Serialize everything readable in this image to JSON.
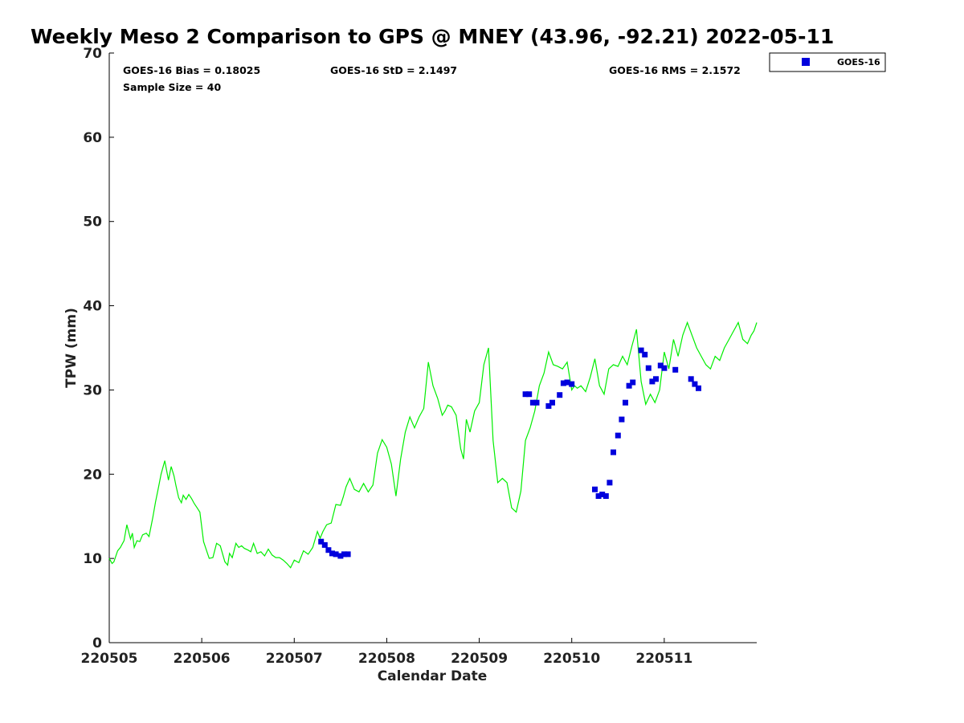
{
  "chart_data": {
    "type": "scatter",
    "title": "Weekly Meso 2 Comparison to GPS @ MNEY (43.96, -92.21) 2022-05-11",
    "xlabel": "Calendar Date",
    "ylabel": "TPW (mm)",
    "xlim": [
      0,
      7
    ],
    "ylim": [
      0,
      70
    ],
    "x_ticks": [
      {
        "value": 0,
        "label": "220505"
      },
      {
        "value": 1,
        "label": "220506"
      },
      {
        "value": 2,
        "label": "220507"
      },
      {
        "value": 3,
        "label": "220508"
      },
      {
        "value": 4,
        "label": "220509"
      },
      {
        "value": 5,
        "label": "220510"
      },
      {
        "value": 6,
        "label": "220511"
      }
    ],
    "y_ticks": [
      0,
      10,
      20,
      30,
      40,
      50,
      60,
      70
    ],
    "grid": false,
    "legend_position": "top-right",
    "stats": {
      "bias": "GOES-16 Bias = 0.18025",
      "std": "GOES-16 StD = 2.1497",
      "rms": "GOES-16 RMS = 2.1572",
      "sample": "Sample Size = 40"
    },
    "series": [
      {
        "name": "GOES-16",
        "kind": "points",
        "color": "#0000dd",
        "x": [
          2.29,
          2.33,
          2.37,
          2.41,
          2.45,
          2.5,
          2.54,
          2.58,
          4.5,
          4.54,
          4.58,
          4.62,
          4.75,
          4.79,
          4.87,
          4.91,
          4.95,
          5.0,
          5.25,
          5.29,
          5.33,
          5.37,
          5.41,
          5.45,
          5.5,
          5.54,
          5.58,
          5.62,
          5.66,
          5.75,
          5.79,
          5.83,
          5.87,
          5.91,
          5.96,
          6.0,
          6.12,
          6.29,
          6.33,
          6.37
        ],
        "y": [
          12.0,
          11.6,
          11.0,
          10.6,
          10.5,
          10.3,
          10.5,
          10.5,
          29.5,
          29.5,
          28.5,
          28.5,
          28.1,
          28.5,
          29.4,
          30.8,
          30.9,
          30.7,
          18.2,
          17.4,
          17.6,
          17.4,
          19.0,
          22.6,
          24.6,
          26.5,
          28.5,
          30.5,
          30.9,
          34.7,
          34.2,
          32.6,
          31.0,
          31.3,
          32.9,
          32.6,
          32.4,
          31.3,
          30.7,
          30.2
        ]
      },
      {
        "name": "",
        "kind": "line",
        "color": "#00ee00",
        "x": [
          0.0,
          0.03,
          0.05,
          0.09,
          0.12,
          0.16,
          0.19,
          0.23,
          0.25,
          0.27,
          0.3,
          0.33,
          0.36,
          0.4,
          0.43,
          0.47,
          0.5,
          0.53,
          0.56,
          0.6,
          0.64,
          0.67,
          0.7,
          0.72,
          0.75,
          0.78,
          0.8,
          0.83,
          0.86,
          0.89,
          0.92,
          0.95,
          0.98,
          1.02,
          1.05,
          1.08,
          1.12,
          1.16,
          1.2,
          1.25,
          1.28,
          1.3,
          1.33,
          1.37,
          1.4,
          1.43,
          1.46,
          1.5,
          1.53,
          1.56,
          1.6,
          1.64,
          1.68,
          1.72,
          1.76,
          1.8,
          1.84,
          1.88,
          1.92,
          1.96,
          2.0,
          2.05,
          2.1,
          2.15,
          2.2,
          2.25,
          2.28,
          2.31,
          2.35,
          2.4,
          2.45,
          2.5,
          2.53,
          2.56,
          2.6,
          2.65,
          2.7,
          2.75,
          2.8,
          2.85,
          2.9,
          2.95,
          3.0,
          3.05,
          3.1,
          3.15,
          3.2,
          3.25,
          3.3,
          3.35,
          3.4,
          3.45,
          3.5,
          3.55,
          3.6,
          3.63,
          3.66,
          3.7,
          3.75,
          3.8,
          3.83,
          3.86,
          3.9,
          3.95,
          4.0,
          4.05,
          4.1,
          4.15,
          4.2,
          4.25,
          4.3,
          4.35,
          4.4,
          4.45,
          4.5,
          4.55,
          4.6,
          4.65,
          4.7,
          4.75,
          4.8,
          4.85,
          4.9,
          4.95,
          5.0,
          5.03,
          5.06,
          5.1,
          5.15,
          5.2,
          5.25,
          5.3,
          5.35,
          5.4,
          5.45,
          5.5,
          5.55,
          5.6,
          5.65,
          5.7,
          5.75,
          5.8,
          5.85,
          5.9,
          5.95,
          6.0,
          6.05,
          6.1,
          6.15,
          6.2,
          6.25,
          6.3,
          6.35,
          6.4,
          6.45,
          6.5,
          6.55,
          6.6,
          6.65,
          6.7,
          6.75,
          6.8,
          6.85,
          6.9,
          6.94,
          6.97,
          7.0
        ],
        "y": [
          10.0,
          9.4,
          9.6,
          10.9,
          11.3,
          12.1,
          14.0,
          12.3,
          13.0,
          11.3,
          12.1,
          12.0,
          12.8,
          13.0,
          12.6,
          14.8,
          16.7,
          18.3,
          20.0,
          21.6,
          19.3,
          20.9,
          19.8,
          18.7,
          17.2,
          16.6,
          17.5,
          17.0,
          17.6,
          17.1,
          16.5,
          16.0,
          15.5,
          12.0,
          11.0,
          10.0,
          10.1,
          11.8,
          11.5,
          9.6,
          9.2,
          10.6,
          10.1,
          11.8,
          11.3,
          11.5,
          11.2,
          11.0,
          10.8,
          11.8,
          10.6,
          10.8,
          10.3,
          11.1,
          10.4,
          10.1,
          10.1,
          9.8,
          9.4,
          8.9,
          9.8,
          9.5,
          10.9,
          10.5,
          11.3,
          13.2,
          12.4,
          13.2,
          14.0,
          14.2,
          16.4,
          16.3,
          17.3,
          18.5,
          19.5,
          18.2,
          17.9,
          18.9,
          17.9,
          18.7,
          22.5,
          24.1,
          23.2,
          21.2,
          17.4,
          21.8,
          25.0,
          26.8,
          25.5,
          26.8,
          27.8,
          33.3,
          30.5,
          29.0,
          27.0,
          27.5,
          28.2,
          28.0,
          27.0,
          23.0,
          21.8,
          26.5,
          25.0,
          27.5,
          28.5,
          33.0,
          35.0,
          24.0,
          19.0,
          19.5,
          19.0,
          16.0,
          15.5,
          18.0,
          24.0,
          25.5,
          27.5,
          30.5,
          32.0,
          34.5,
          33.0,
          32.8,
          32.5,
          33.3,
          30.0,
          30.5,
          30.2,
          30.5,
          29.8,
          31.5,
          33.7,
          30.5,
          29.5,
          32.5,
          33.0,
          32.8,
          34.0,
          33.0,
          35.2,
          37.2,
          31.0,
          28.3,
          29.5,
          28.5,
          30.0,
          34.5,
          32.5,
          36.0,
          34.0,
          36.5,
          38.0,
          36.5,
          35.0,
          34.0,
          33.0,
          32.5,
          34.0,
          33.5,
          35.0,
          36.0,
          37.0,
          38.0,
          36.0,
          35.5,
          36.5,
          37.0,
          38.0
        ]
      }
    ]
  }
}
